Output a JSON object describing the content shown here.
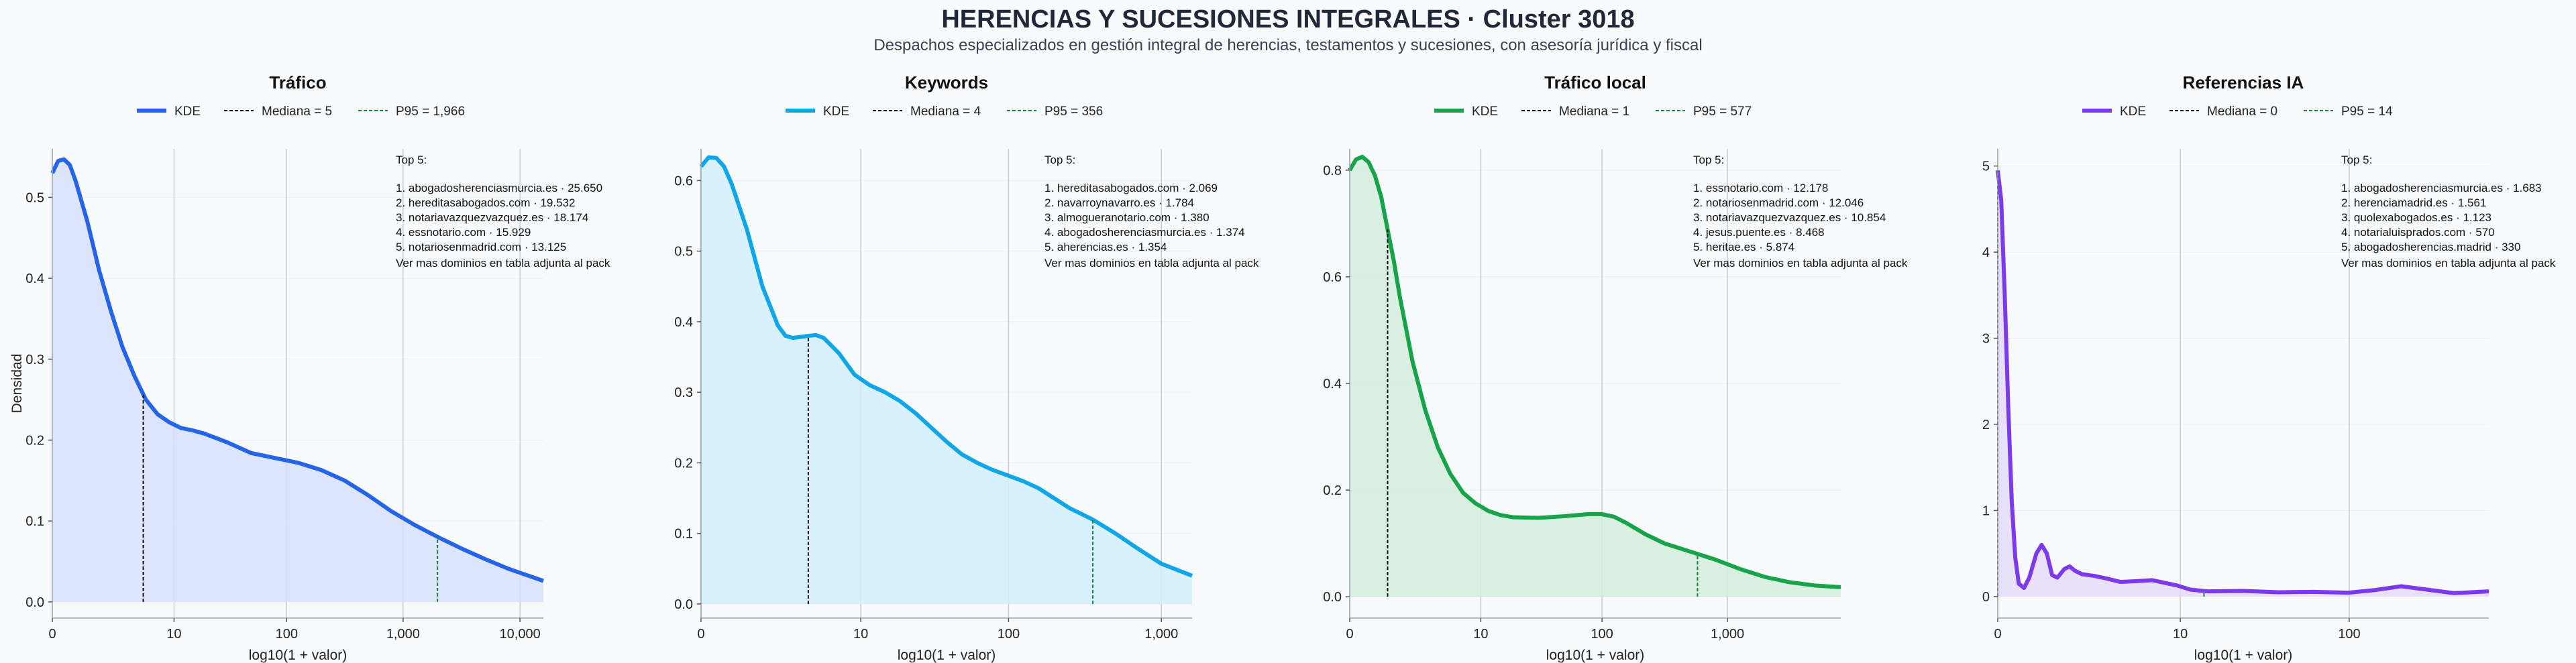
{
  "title": "HERENCIAS Y SUCESIONES INTEGRALES · Cluster 3018",
  "subtitle": "Despachos especializados en gestión integral de herencias, testamentos y sucesiones, con asesoría jurídica y fiscal",
  "chart_data": [
    {
      "type": "area",
      "title": "Tráfico",
      "xlabel": "log10(1 + valor)",
      "ylabel": "Densidad",
      "color": "#2563eb",
      "fill": "#d7e1fb",
      "legend": [
        "KDE",
        "Mediana = 5",
        "P95 = 1,966"
      ],
      "x_ticks": [
        {
          "v": 0,
          "label": "0"
        },
        {
          "v": 1.041,
          "label": "10"
        },
        {
          "v": 2.004,
          "label": "100"
        },
        {
          "v": 3.0,
          "label": "1,000"
        },
        {
          "v": 4.0,
          "label": "10,000"
        }
      ],
      "xlim": [
        0,
        4.2
      ],
      "y_ticks": [
        0,
        0.1,
        0.2,
        0.3,
        0.4,
        0.5
      ],
      "ylim": [
        -0.02,
        0.56
      ],
      "kde": [
        [
          0,
          0.53
        ],
        [
          0.05,
          0.545
        ],
        [
          0.1,
          0.547
        ],
        [
          0.15,
          0.54
        ],
        [
          0.2,
          0.52
        ],
        [
          0.3,
          0.47
        ],
        [
          0.4,
          0.41
        ],
        [
          0.5,
          0.36
        ],
        [
          0.6,
          0.315
        ],
        [
          0.7,
          0.28
        ],
        [
          0.8,
          0.25
        ],
        [
          0.9,
          0.232
        ],
        [
          1.0,
          0.222
        ],
        [
          1.1,
          0.215
        ],
        [
          1.2,
          0.212
        ],
        [
          1.3,
          0.208
        ],
        [
          1.5,
          0.197
        ],
        [
          1.7,
          0.184
        ],
        [
          1.9,
          0.178
        ],
        [
          2.1,
          0.172
        ],
        [
          2.3,
          0.163
        ],
        [
          2.5,
          0.15
        ],
        [
          2.7,
          0.132
        ],
        [
          2.9,
          0.112
        ],
        [
          3.1,
          0.095
        ],
        [
          3.3,
          0.08
        ],
        [
          3.5,
          0.066
        ],
        [
          3.7,
          0.053
        ],
        [
          3.9,
          0.041
        ],
        [
          4.2,
          0.026
        ]
      ],
      "median": {
        "value": 5,
        "x": 0.778
      },
      "p95": {
        "value": 1966,
        "x": 3.294
      },
      "top5_title": "Top 5:",
      "top5": [
        "1. abogadosherenciasmurcia.es · 25.650",
        "2. hereditasabogados.com · 19.532",
        "3. notariavazquezvazquez.es · 18.174",
        "4. essnotario.com · 15.929",
        "5. notariosenmadrid.com · 13.125"
      ],
      "note": "Ver mas dominios en tabla adjunta al pack"
    },
    {
      "type": "area",
      "title": "Keywords",
      "xlabel": "log10(1 + valor)",
      "ylabel": "",
      "color": "#0ea5e9",
      "fill": "#d4eefb",
      "legend": [
        "KDE",
        "Mediana = 4",
        "P95 = 356"
      ],
      "x_ticks": [
        {
          "v": 0,
          "label": "0"
        },
        {
          "v": 1.041,
          "label": "10"
        },
        {
          "v": 2.004,
          "label": "100"
        },
        {
          "v": 3.0,
          "label": "1,000"
        }
      ],
      "xlim": [
        0,
        3.2
      ],
      "y_ticks": [
        0,
        0.1,
        0.2,
        0.3,
        0.4,
        0.5,
        0.6
      ],
      "ylim": [
        -0.02,
        0.645
      ],
      "kde": [
        [
          0,
          0.62
        ],
        [
          0.05,
          0.633
        ],
        [
          0.1,
          0.632
        ],
        [
          0.15,
          0.62
        ],
        [
          0.2,
          0.595
        ],
        [
          0.3,
          0.53
        ],
        [
          0.4,
          0.45
        ],
        [
          0.5,
          0.395
        ],
        [
          0.55,
          0.38
        ],
        [
          0.6,
          0.377
        ],
        [
          0.7,
          0.38
        ],
        [
          0.75,
          0.381
        ],
        [
          0.8,
          0.377
        ],
        [
          0.9,
          0.355
        ],
        [
          1.0,
          0.325
        ],
        [
          1.1,
          0.31
        ],
        [
          1.2,
          0.3
        ],
        [
          1.3,
          0.287
        ],
        [
          1.4,
          0.27
        ],
        [
          1.5,
          0.25
        ],
        [
          1.6,
          0.23
        ],
        [
          1.7,
          0.212
        ],
        [
          1.8,
          0.2
        ],
        [
          1.9,
          0.19
        ],
        [
          2.0,
          0.182
        ],
        [
          2.1,
          0.174
        ],
        [
          2.2,
          0.164
        ],
        [
          2.3,
          0.15
        ],
        [
          2.4,
          0.136
        ],
        [
          2.55,
          0.12
        ],
        [
          2.7,
          0.1
        ],
        [
          2.85,
          0.078
        ],
        [
          3.0,
          0.057
        ],
        [
          3.2,
          0.04
        ]
      ],
      "median": {
        "value": 4,
        "x": 0.699
      },
      "p95": {
        "value": 356,
        "x": 2.553
      },
      "top5_title": "Top 5:",
      "top5": [
        "1. hereditasabogados.com · 2.069",
        "2. navarroynavarro.es · 1.784",
        "3. almogueranotario.com · 1.380",
        "4. abogadosherenciasmurcia.es · 1.374",
        "5. aherencias.es · 1.354"
      ],
      "note": "Ver mas dominios en tabla adjunta al pack"
    },
    {
      "type": "area",
      "title": "Tráfico local",
      "xlabel": "log10(1 + valor)",
      "ylabel": "",
      "color": "#16a34a",
      "fill": "#d4ecdb",
      "legend": [
        "KDE",
        "Mediana = 1",
        "P95 = 577"
      ],
      "x_ticks": [
        {
          "v": 0,
          "label": "0"
        },
        {
          "v": 1.041,
          "label": "10"
        },
        {
          "v": 2.004,
          "label": "100"
        },
        {
          "v": 3.0,
          "label": "1,000"
        }
      ],
      "xlim": [
        0,
        3.9
      ],
      "y_ticks": [
        0,
        0.2,
        0.4,
        0.6,
        0.8
      ],
      "ylim": [
        -0.04,
        0.84
      ],
      "kde": [
        [
          0,
          0.8
        ],
        [
          0.05,
          0.82
        ],
        [
          0.1,
          0.825
        ],
        [
          0.15,
          0.815
        ],
        [
          0.2,
          0.79
        ],
        [
          0.25,
          0.75
        ],
        [
          0.3,
          0.69
        ],
        [
          0.35,
          0.63
        ],
        [
          0.4,
          0.56
        ],
        [
          0.5,
          0.44
        ],
        [
          0.6,
          0.35
        ],
        [
          0.7,
          0.28
        ],
        [
          0.8,
          0.23
        ],
        [
          0.9,
          0.195
        ],
        [
          1.0,
          0.175
        ],
        [
          1.1,
          0.161
        ],
        [
          1.2,
          0.153
        ],
        [
          1.3,
          0.149
        ],
        [
          1.5,
          0.148
        ],
        [
          1.7,
          0.151
        ],
        [
          1.9,
          0.155
        ],
        [
          2.0,
          0.155
        ],
        [
          2.1,
          0.15
        ],
        [
          2.2,
          0.138
        ],
        [
          2.35,
          0.117
        ],
        [
          2.5,
          0.1
        ],
        [
          2.7,
          0.085
        ],
        [
          2.9,
          0.07
        ],
        [
          3.1,
          0.052
        ],
        [
          3.3,
          0.037
        ],
        [
          3.5,
          0.027
        ],
        [
          3.7,
          0.021
        ],
        [
          3.9,
          0.018
        ]
      ],
      "median": {
        "value": 1,
        "x": 0.301
      },
      "p95": {
        "value": 577,
        "x": 2.762
      },
      "top5_title": "Top 5:",
      "top5": [
        "1. essnotario.com · 12.178",
        "2. notariosenmadrid.com · 12.046",
        "3. notariavazquezvazquez.es · 10.854",
        "4. jesus.puente.es · 8.468",
        "5. heritae.es · 5.874"
      ],
      "note": "Ver mas dominios en tabla adjunta al pack"
    },
    {
      "type": "area",
      "title": "Referencias IA",
      "xlabel": "log10(1 + valor)",
      "ylabel": "",
      "color": "#7c3aed",
      "fill": "#e6dafa",
      "legend": [
        "KDE",
        "Mediana = 0",
        "P95 = 14"
      ],
      "x_ticks": [
        {
          "v": 0,
          "label": "0"
        },
        {
          "v": 1.041,
          "label": "10"
        },
        {
          "v": 2.004,
          "label": "100"
        }
      ],
      "xlim": [
        0,
        2.8
      ],
      "y_ticks": [
        0,
        1,
        2,
        3,
        4,
        5
      ],
      "ylim": [
        -0.25,
        5.2
      ],
      "kde": [
        [
          0,
          4.95
        ],
        [
          0.02,
          4.6
        ],
        [
          0.04,
          3.5
        ],
        [
          0.06,
          2.2
        ],
        [
          0.08,
          1.1
        ],
        [
          0.1,
          0.45
        ],
        [
          0.12,
          0.15
        ],
        [
          0.15,
          0.1
        ],
        [
          0.18,
          0.22
        ],
        [
          0.22,
          0.5
        ],
        [
          0.25,
          0.6
        ],
        [
          0.28,
          0.5
        ],
        [
          0.31,
          0.25
        ],
        [
          0.34,
          0.22
        ],
        [
          0.38,
          0.32
        ],
        [
          0.41,
          0.35
        ],
        [
          0.44,
          0.3
        ],
        [
          0.48,
          0.26
        ],
        [
          0.55,
          0.24
        ],
        [
          0.62,
          0.21
        ],
        [
          0.7,
          0.17
        ],
        [
          0.8,
          0.18
        ],
        [
          0.88,
          0.19
        ],
        [
          0.95,
          0.16
        ],
        [
          1.02,
          0.13
        ],
        [
          1.1,
          0.08
        ],
        [
          1.2,
          0.06
        ],
        [
          1.4,
          0.065
        ],
        [
          1.6,
          0.05
        ],
        [
          1.8,
          0.055
        ],
        [
          2.0,
          0.045
        ],
        [
          2.15,
          0.075
        ],
        [
          2.3,
          0.12
        ],
        [
          2.45,
          0.08
        ],
        [
          2.6,
          0.04
        ],
        [
          2.8,
          0.06
        ]
      ],
      "median": {
        "value": 0,
        "x": 0.0
      },
      "p95": {
        "value": 14,
        "x": 1.176
      },
      "top5_title": "Top 5:",
      "top5": [
        "1. abogadosherenciasmurcia.es · 1.683",
        "2. herenciamadrid.es · 1.561",
        "3. quolexabogados.es · 1.123",
        "4. notarialuisprados.com · 570",
        "5. abogadosherencias.madrid · 330"
      ],
      "note": "Ver mas dominios en tabla adjunta al pack"
    }
  ]
}
